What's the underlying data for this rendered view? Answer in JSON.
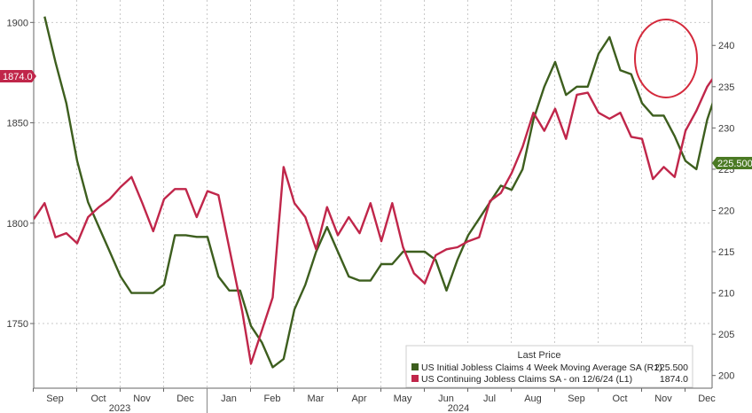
{
  "chart_data": {
    "type": "line",
    "x_labels": [
      "Sep",
      "Oct",
      "Nov",
      "Dec",
      "Jan",
      "Feb",
      "Mar",
      "Apr",
      "May",
      "Jun",
      "Jul",
      "Aug",
      "Sep",
      "Oct",
      "Nov",
      "Dec"
    ],
    "year_labels": [
      "2023",
      "2024"
    ],
    "left_axis": {
      "ticks": [
        1750,
        1800,
        1850,
        1900
      ],
      "ylim": [
        1720,
        1905
      ]
    },
    "right_axis": {
      "ticks": [
        200,
        205,
        210,
        215,
        220,
        225,
        230,
        235,
        240
      ],
      "ylim": [
        199,
        244
      ]
    },
    "grid": true,
    "legend": {
      "title": "Last Price",
      "placement": "bottom-right",
      "entries": [
        {
          "label": "US Initial Jobless Claims 4 Week Moving Average SA (R1)",
          "value": "225.500",
          "color": "#3d5e1e"
        },
        {
          "label": "US Continuing Jobless Claims SA - on 12/6/24 (L1)",
          "value": "1874.0",
          "color": "#c0264a"
        }
      ]
    },
    "last_value_tags": {
      "left": "1874.0",
      "right": "225.500"
    },
    "annotation": {
      "shape": "circle",
      "color": "#d42a3c"
    },
    "series": [
      {
        "name": "US Initial Jobless Claims 4 Week Moving Average SA (R1)",
        "axis": "right",
        "color": "#3d5e1e",
        "values": [
          243.5,
          238,
          233,
          226,
          221,
          218,
          215,
          212,
          210,
          210,
          210,
          211,
          217,
          217,
          216.8,
          216.8,
          212,
          210.3,
          210.3,
          206,
          204,
          201,
          202,
          208,
          211,
          215,
          218,
          215,
          212,
          211.5,
          211.5,
          213.5,
          213.5,
          215,
          215,
          215,
          214,
          210.3,
          214,
          217,
          219,
          221,
          223,
          222.5,
          225,
          231,
          235,
          238,
          234,
          235,
          235,
          239,
          241,
          237,
          236.5,
          233,
          231.5,
          231.5,
          229,
          226,
          225,
          231,
          235,
          238,
          236,
          229,
          224,
          220,
          218.5,
          218,
          218.5,
          223,
          225.5
        ],
        "x": [
          0.5,
          1,
          1.5,
          2,
          2.5,
          3,
          3.5,
          4,
          4.5,
          5,
          5.5,
          6,
          6.5,
          7,
          7.5,
          8,
          8.5,
          9,
          9.5,
          10,
          10.5,
          11,
          11.5,
          12,
          12.5,
          13,
          13.5,
          14,
          14.5,
          15,
          15.5,
          16,
          16.5,
          17,
          17.5,
          18,
          18.5,
          19,
          19.5,
          20,
          20.5,
          21,
          21.5,
          22,
          22.5,
          23,
          23.5,
          24,
          24.5,
          25,
          25.5,
          26,
          26.5,
          27,
          27.5,
          28,
          28.5,
          29,
          29.5,
          30,
          30.5,
          31,
          31.5,
          32,
          32.5,
          33,
          33.5,
          34,
          34.5,
          35,
          35.5,
          36,
          36.5
        ]
      },
      {
        "name": "US Continuing Jobless Claims SA - on 12/6/24 (L1)",
        "axis": "left",
        "color": "#c0264a",
        "values": [
          1802,
          1810,
          1793,
          1795,
          1790,
          1803,
          1808,
          1812,
          1818,
          1823,
          1810,
          1796,
          1812,
          1817,
          1817,
          1803,
          1816,
          1814,
          1756,
          1730,
          1763,
          1828,
          1810,
          1803,
          1787,
          1808,
          1794,
          1803,
          1795,
          1810,
          1791,
          1810,
          1788,
          1775,
          1770,
          1784,
          1787,
          1788,
          1791,
          1793,
          1811,
          1815,
          1825,
          1838,
          1855,
          1846,
          1857,
          1842,
          1864,
          1865,
          1855,
          1852,
          1855,
          1843,
          1842,
          1822,
          1828,
          1823,
          1846,
          1856,
          1868,
          1876,
          1878,
          1853,
          1878,
          1896,
          1895,
          1871,
          1878,
          1874
        ],
        "x": [
          0,
          0.5,
          1,
          1.5,
          2,
          2.5,
          3,
          3.5,
          4,
          4.5,
          5,
          5.5,
          6,
          6.5,
          7,
          7.5,
          8,
          8.5,
          9.6,
          10,
          11,
          11.5,
          12,
          12.5,
          13,
          13.5,
          14,
          14.5,
          15,
          15.5,
          16,
          16.5,
          17,
          17.5,
          18,
          18.5,
          19,
          19.5,
          20,
          20.5,
          21,
          21.5,
          22,
          22.5,
          23,
          23.5,
          24,
          24.5,
          25,
          25.5,
          26,
          26.5,
          27,
          27.5,
          28,
          28.5,
          29,
          29.5,
          30,
          30.5,
          31,
          31.5,
          32,
          32.5,
          33,
          33.5,
          34,
          34.5,
          35,
          35.5
        ]
      }
    ]
  }
}
